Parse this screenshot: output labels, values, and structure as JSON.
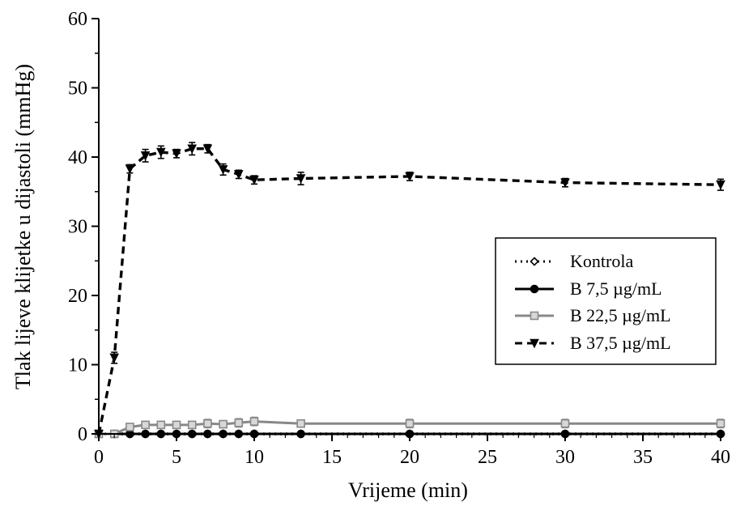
{
  "chart_data": {
    "type": "line",
    "xlabel": "Vrijeme (min)",
    "ylabel": "Tlak lijeve klijetke u dijastoli (mmHg)",
    "xlim": [
      0,
      40
    ],
    "ylim": [
      0,
      60
    ],
    "xticks": [
      "0",
      "5",
      "10",
      "15",
      "20",
      "25",
      "30",
      "35",
      "40"
    ],
    "yticks": [
      "0",
      "10",
      "20",
      "30",
      "40",
      "50",
      "60"
    ],
    "grid": false,
    "legend_position": "right",
    "series": [
      {
        "name": "Kontrola",
        "style": "dotted",
        "marker": "diamond-open",
        "color": "#000000",
        "x": [
          0,
          1,
          2,
          3,
          4,
          5,
          6,
          7,
          8,
          9,
          10,
          13,
          20,
          30,
          40
        ],
        "y": [
          0,
          0,
          0,
          0,
          0,
          0,
          0,
          0,
          0,
          0,
          0,
          0,
          0,
          0,
          0
        ],
        "err": [
          0,
          0,
          0,
          0,
          0,
          0,
          0,
          0,
          0,
          0,
          0,
          0,
          0,
          0,
          0
        ]
      },
      {
        "name": "B 7,5 µg/mL",
        "style": "solid",
        "marker": "circle",
        "color": "#000000",
        "x": [
          0,
          1,
          2,
          3,
          4,
          5,
          6,
          7,
          8,
          9,
          10,
          13,
          20,
          30,
          40
        ],
        "y": [
          0,
          0,
          0,
          0,
          0,
          0,
          0,
          0,
          0,
          0,
          0,
          0,
          0,
          0,
          0
        ],
        "err": [
          0,
          0,
          0,
          0,
          0,
          0,
          0,
          0,
          0,
          0,
          0,
          0,
          0,
          0,
          0
        ]
      },
      {
        "name": "B 22,5 µg/mL",
        "style": "solid",
        "marker": "square",
        "color": "#888888",
        "x": [
          0,
          1,
          2,
          3,
          4,
          5,
          6,
          7,
          8,
          9,
          10,
          13,
          20,
          30,
          40
        ],
        "y": [
          0,
          0,
          1.0,
          1.3,
          1.3,
          1.3,
          1.3,
          1.5,
          1.4,
          1.6,
          1.8,
          1.5,
          1.5,
          1.5,
          1.5
        ],
        "err": [
          0,
          0,
          0.3,
          0.5,
          0.5,
          0.5,
          0.5,
          0.6,
          0.5,
          0.6,
          0.6,
          0.5,
          0.6,
          0.6,
          0.6
        ]
      },
      {
        "name": "B 37,5 µg/mL",
        "style": "dashed",
        "marker": "triangle-down",
        "color": "#000000",
        "x": [
          0,
          1,
          2,
          3,
          4,
          5,
          6,
          7,
          8,
          9,
          10,
          13,
          20,
          30,
          40
        ],
        "y": [
          0,
          11,
          38.3,
          40.2,
          40.7,
          40.5,
          41.2,
          41.2,
          38.2,
          37.5,
          36.7,
          36.9,
          37.2,
          36.3,
          36.0
        ],
        "err": [
          0,
          0.8,
          0.6,
          0.9,
          0.9,
          0.6,
          0.9,
          0.6,
          0.8,
          0.6,
          0.6,
          0.9,
          0.6,
          0.6,
          0.8
        ]
      }
    ]
  }
}
